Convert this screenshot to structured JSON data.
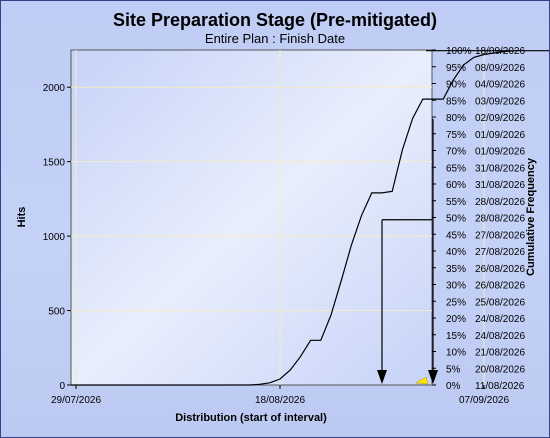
{
  "chart_data": {
    "type": "area",
    "title": "Site Preparation Stage (Pre-mitigated)",
    "subtitle": "Entire Plan : Finish Date",
    "xlabel": "Distribution (start of interval)",
    "ylabel": "Hits",
    "y2label": "Cumulative Frequency",
    "x_ticks": [
      "29/07/2026",
      "18/08/2026",
      "07/09/2026"
    ],
    "y_ticks": [
      0,
      500,
      1000,
      1500,
      2000
    ],
    "ylim": [
      0,
      2250
    ],
    "grid": true,
    "series": [
      {
        "x": [
          "13/08/2026",
          "14/08/2026",
          "15/08/2026",
          "16/08/2026",
          "17/08/2026",
          "18/08/2026",
          "19/08/2026",
          "20/08/2026",
          "21/08/2026",
          "22/08/2026",
          "23/08/2026",
          "24/08/2026",
          "25/08/2026",
          "26/08/2026",
          "27/08/2026",
          "28/08/2026",
          "29/08/2026",
          "30/08/2026",
          "31/08/2026",
          "01/09/2026",
          "02/09/2026",
          "03/09/2026",
          "04/09/2026",
          "05/09/2026",
          "06/09/2026",
          "07/09/2026",
          "08/09/2026",
          "09/09/2026",
          "10/09/2026",
          "11/09/2026",
          "12/09/2026",
          "13/09/2026",
          "14/09/2026",
          "15/09/2026",
          "16/09/2026",
          "17/09/2026",
          "18/09/2026"
        ],
        "values": [
          0,
          0,
          0,
          5,
          15,
          40,
          100,
          190,
          300,
          300,
          470,
          700,
          940,
          1140,
          1290,
          1290,
          1300,
          1580,
          1790,
          1920,
          1920,
          1920,
          2050,
          2150,
          2200,
          2220,
          2230,
          2240,
          2245,
          2245,
          2245,
          2245,
          2245,
          2245,
          2245,
          2245,
          2245
        ]
      }
    ],
    "markers": [
      {
        "label": "50%",
        "date": "28/08/2026",
        "hits": 1110
      },
      {
        "label": "80%",
        "date": "02/09/2026",
        "hits": 1785
      }
    ],
    "right_axis": [
      {
        "pct": "0%",
        "date": "11/08/2026"
      },
      {
        "pct": "5%",
        "date": "20/08/2026"
      },
      {
        "pct": "10%",
        "date": "21/08/2026"
      },
      {
        "pct": "15%",
        "date": "24/08/2026"
      },
      {
        "pct": "20%",
        "date": "24/08/2026"
      },
      {
        "pct": "25%",
        "date": "25/08/2026"
      },
      {
        "pct": "30%",
        "date": "26/08/2026"
      },
      {
        "pct": "35%",
        "date": "26/08/2026"
      },
      {
        "pct": "40%",
        "date": "27/08/2026"
      },
      {
        "pct": "45%",
        "date": "27/08/2026"
      },
      {
        "pct": "50%",
        "date": "28/08/2026"
      },
      {
        "pct": "55%",
        "date": "28/08/2026"
      },
      {
        "pct": "60%",
        "date": "31/08/2026"
      },
      {
        "pct": "65%",
        "date": "31/08/2026"
      },
      {
        "pct": "70%",
        "date": "01/09/2026"
      },
      {
        "pct": "75%",
        "date": "01/09/2026"
      },
      {
        "pct": "80%",
        "date": "02/09/2026"
      },
      {
        "pct": "85%",
        "date": "03/09/2026"
      },
      {
        "pct": "90%",
        "date": "04/09/2026"
      },
      {
        "pct": "95%",
        "date": "08/09/2026"
      },
      {
        "pct": "100%",
        "date": "18/09/2026"
      }
    ]
  },
  "colors": {
    "frame": "#3a3f8a",
    "background": "#c4d2f7",
    "grid": "#f2ecc8",
    "line": "#000000",
    "deterministic_marker": "#ffe600"
  }
}
